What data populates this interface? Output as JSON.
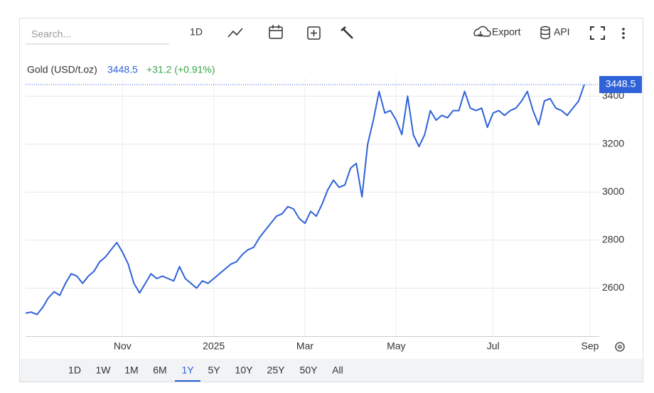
{
  "toolbar": {
    "search_placeholder": "Search...",
    "interval": "1D",
    "export": "Export",
    "api": "API"
  },
  "legend": {
    "name": "Gold (USD/t.oz)",
    "change": "+31.2 (+0.91%)"
  },
  "last_price": 3448.5,
  "ranges": [
    "1D",
    "1W",
    "1M",
    "6M",
    "1Y",
    "5Y",
    "10Y",
    "25Y",
    "50Y",
    "All"
  ],
  "active_range": "1Y",
  "chart_data": {
    "type": "line",
    "categories": [
      null,
      null,
      null,
      null,
      null,
      null,
      null,
      null,
      null,
      null,
      null,
      null,
      null,
      null,
      null,
      null,
      null,
      "Nov",
      null,
      null,
      null,
      null,
      null,
      null,
      null,
      null,
      null,
      null,
      null,
      null,
      null,
      null,
      null,
      "2025",
      null,
      null,
      null,
      null,
      null,
      null,
      null,
      null,
      null,
      null,
      null,
      null,
      null,
      null,
      null,
      "Mar",
      null,
      null,
      null,
      null,
      null,
      null,
      null,
      null,
      null,
      null,
      null,
      null,
      null,
      null,
      null,
      "May",
      null,
      null,
      null,
      null,
      null,
      null,
      null,
      null,
      null,
      null,
      null,
      null,
      null,
      null,
      null,
      null,
      "Jul",
      null,
      null,
      null,
      null,
      null,
      null,
      null,
      null,
      null,
      null,
      null,
      null,
      null,
      null,
      null,
      null,
      "Sep"
    ],
    "series": [
      {
        "name": "Gold",
        "color": "#2f62d8",
        "values": [
          2496,
          2500,
          2490,
          2520,
          2560,
          2585,
          2570,
          2620,
          2660,
          2650,
          2620,
          2650,
          2670,
          2710,
          2730,
          2760,
          2790,
          2750,
          2700,
          2620,
          2580,
          2620,
          2660,
          2640,
          2650,
          2640,
          2630,
          2690,
          2640,
          2620,
          2600,
          2630,
          2620,
          2640,
          2660,
          2680,
          2700,
          2710,
          2740,
          2760,
          2770,
          2810,
          2840,
          2870,
          2900,
          2910,
          2940,
          2930,
          2890,
          2870,
          2920,
          2900,
          2950,
          3010,
          3050,
          3020,
          3030,
          3100,
          3120,
          2980,
          3200,
          3300,
          3420,
          3330,
          3340,
          3300,
          3240,
          3400,
          3240,
          3190,
          3240,
          3340,
          3300,
          3320,
          3310,
          3340,
          3340,
          3420,
          3350,
          3340,
          3350,
          3270,
          3330,
          3340,
          3320,
          3340,
          3350,
          3380,
          3420,
          3340,
          3280,
          3380,
          3390,
          3350,
          3340,
          3320,
          3350,
          3380,
          3448.5,
          null
        ]
      }
    ],
    "ylim": [
      2400,
      3475
    ],
    "yticks": [
      2600,
      2800,
      3000,
      3200,
      3400
    ],
    "grid": true
  }
}
